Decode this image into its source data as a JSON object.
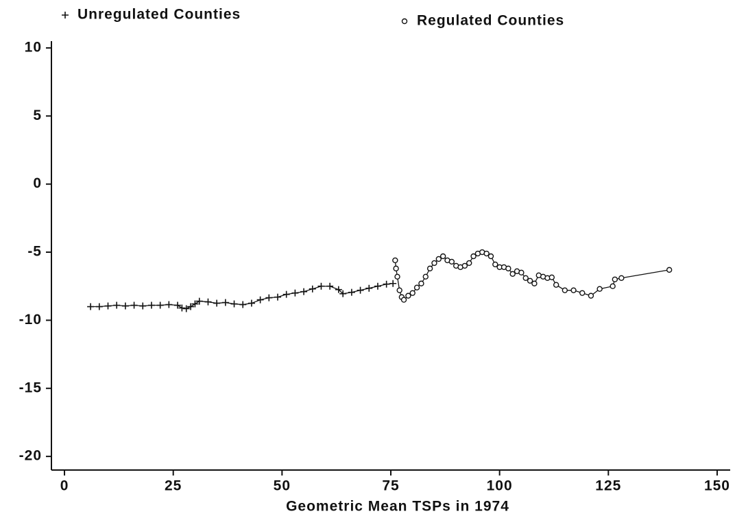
{
  "chart_data": {
    "type": "scatter",
    "x_label": "Geometric Mean TSPs in 1974",
    "xlim": [
      -3,
      153
    ],
    "ylim": [
      -21,
      10.5
    ],
    "xticks": [
      0,
      25,
      50,
      75,
      100,
      125,
      150
    ],
    "yticks": [
      -20,
      -15,
      -10,
      -5,
      0,
      5,
      10
    ],
    "grid": false,
    "series": [
      {
        "name": "Unregulated Counties",
        "color": "#111111",
        "marker": "plus",
        "x": [
          6,
          8,
          10,
          12,
          14,
          16,
          18,
          20,
          22,
          24,
          26,
          27,
          28,
          29,
          30,
          31,
          33,
          35,
          37,
          39,
          41,
          43,
          45,
          47,
          49,
          51,
          53,
          55,
          57,
          59,
          61,
          63,
          64,
          66,
          68,
          70,
          72,
          74,
          75.5
        ],
        "values": [
          -9,
          -9,
          -8.95,
          -8.9,
          -8.95,
          -8.9,
          -8.95,
          -8.9,
          -8.9,
          -8.85,
          -8.9,
          -9.1,
          -9.15,
          -9.0,
          -8.8,
          -8.6,
          -8.65,
          -8.75,
          -8.7,
          -8.8,
          -8.85,
          -8.75,
          -8.5,
          -8.35,
          -8.3,
          -8.1,
          -8.0,
          -7.9,
          -7.7,
          -7.5,
          -7.5,
          -7.75,
          -8.05,
          -7.95,
          -7.8,
          -7.65,
          -7.5,
          -7.35,
          -7.3
        ]
      },
      {
        "name": "Regulated Counties",
        "color": "#111111",
        "marker": "circle",
        "x": [
          76,
          76.2,
          76.5,
          77,
          77.5,
          78,
          79,
          80,
          81,
          82,
          83,
          84,
          85,
          86,
          87,
          88,
          89,
          90,
          91,
          92,
          93,
          94,
          95,
          96,
          97,
          98,
          99,
          100,
          101,
          102,
          103,
          104,
          105,
          106,
          107,
          108,
          109,
          110,
          111,
          112,
          113,
          115,
          117,
          119,
          121,
          123,
          126,
          126.5,
          128,
          139
        ],
        "values": [
          -5.6,
          -6.2,
          -6.8,
          -7.8,
          -8.3,
          -8.5,
          -8.2,
          -8.0,
          -7.6,
          -7.3,
          -6.8,
          -6.2,
          -5.8,
          -5.5,
          -5.3,
          -5.6,
          -5.7,
          -6.0,
          -6.1,
          -6.0,
          -5.8,
          -5.3,
          -5.1,
          -5.0,
          -5.1,
          -5.3,
          -5.9,
          -6.1,
          -6.1,
          -6.2,
          -6.6,
          -6.4,
          -6.5,
          -6.9,
          -7.1,
          -7.3,
          -6.7,
          -6.8,
          -6.9,
          -6.85,
          -7.4,
          -7.8,
          -7.8,
          -8.0,
          -8.2,
          -7.7,
          -7.5,
          -7.0,
          -6.9,
          -6.3
        ]
      }
    ]
  }
}
